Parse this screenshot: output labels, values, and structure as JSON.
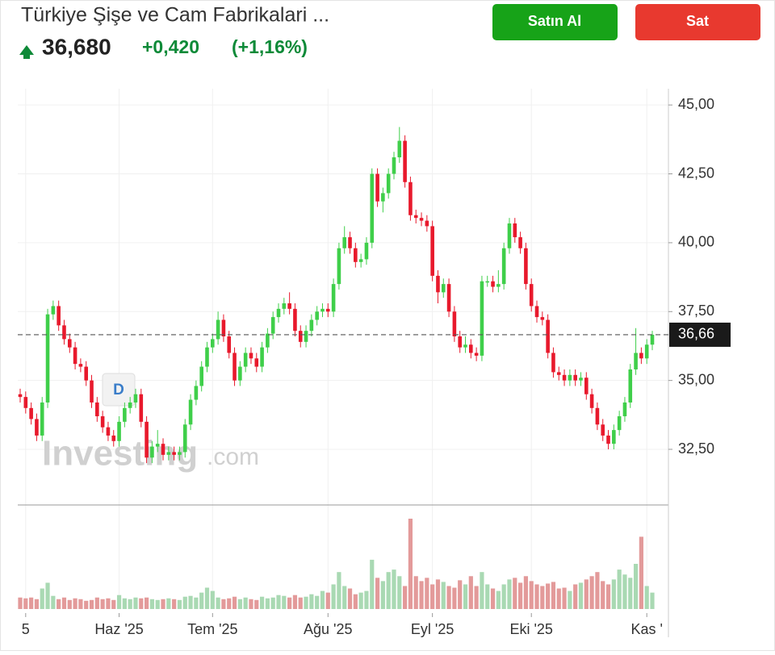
{
  "header": {
    "title": "Türkiye Şişe ve Cam Fabrikalari ...",
    "price": "36,680",
    "change": "+0,420",
    "change_pct": "(+1,16%)"
  },
  "buttons": {
    "buy": "Satın Al",
    "sell": "Sat"
  },
  "watermark": {
    "brand": "Investing",
    "suffix": ".com"
  },
  "badge": "D",
  "chart_data": {
    "type": "candlestick",
    "categories": [
      null,
      "5",
      null,
      null,
      null,
      null,
      null,
      null,
      null,
      null,
      null,
      null,
      null,
      null,
      null,
      null,
      null,
      null,
      "Haz '25",
      null,
      null,
      null,
      null,
      null,
      null,
      null,
      null,
      null,
      null,
      null,
      null,
      null,
      null,
      null,
      null,
      "Tem '25",
      null,
      null,
      null,
      null,
      null,
      null,
      null,
      null,
      null,
      null,
      null,
      null,
      null,
      null,
      null,
      null,
      null,
      null,
      null,
      null,
      "Ağu '25",
      null,
      null,
      null,
      null,
      null,
      null,
      null,
      null,
      null,
      null,
      null,
      null,
      null,
      null,
      null,
      null,
      null,
      null,
      "Eyl '25",
      null,
      null,
      null,
      null,
      null,
      null,
      null,
      null,
      null,
      null,
      null,
      null,
      null,
      null,
      null,
      null,
      null,
      "Eki '25",
      null,
      null,
      null,
      null,
      null,
      null,
      null,
      null,
      null,
      null,
      null,
      null,
      null,
      null,
      null,
      null,
      null,
      null,
      null,
      null,
      "Kas '",
      null
    ],
    "open": [
      34.5,
      34.4,
      34.0,
      33.6,
      33.0,
      34.2,
      37.4,
      37.7,
      37.0,
      36.5,
      36.2,
      35.6,
      35.5,
      35.0,
      34.2,
      33.7,
      33.3,
      33.0,
      32.8,
      33.5,
      34.0,
      34.2,
      34.5,
      33.5,
      32.2,
      32.6,
      32.7,
      32.3,
      32.4,
      32.3,
      32.4,
      33.4,
      34.3,
      34.8,
      35.5,
      36.2,
      36.5,
      37.2,
      36.6,
      36.0,
      35.0,
      35.5,
      36.0,
      35.8,
      35.5,
      36.2,
      36.7,
      37.3,
      37.6,
      37.8,
      37.6,
      36.8,
      36.4,
      36.8,
      37.2,
      37.5,
      37.6,
      37.5,
      38.5,
      39.8,
      40.2,
      39.8,
      39.3,
      39.4,
      40.0,
      42.5,
      41.5,
      41.8,
      42.5,
      43.1,
      43.7,
      42.2,
      41.0,
      40.9,
      40.8,
      40.6,
      38.8,
      38.2,
      38.5,
      37.5,
      36.6,
      36.2,
      36.3,
      36.0,
      35.9,
      38.6,
      38.6,
      38.4,
      38.5,
      39.8,
      40.7,
      40.2,
      39.8,
      38.5,
      37.7,
      37.3,
      37.2,
      36.0,
      35.3,
      35.2,
      35.0,
      35.2,
      35.0,
      35.1,
      34.5,
      34.0,
      33.4,
      33.0,
      32.7,
      33.2,
      33.7,
      34.2,
      35.4,
      36.0,
      35.8,
      36.3
    ],
    "high": [
      34.7,
      34.6,
      34.2,
      33.8,
      34.4,
      37.6,
      37.9,
      37.9,
      37.2,
      36.7,
      36.4,
      35.8,
      35.7,
      35.2,
      34.4,
      33.9,
      33.5,
      33.2,
      33.7,
      34.2,
      34.4,
      34.7,
      34.7,
      33.7,
      32.8,
      33.2,
      32.9,
      32.6,
      32.6,
      32.6,
      33.6,
      34.5,
      35.0,
      35.7,
      36.4,
      36.7,
      37.5,
      37.4,
      36.8,
      36.2,
      35.7,
      36.2,
      36.2,
      36.0,
      36.4,
      36.9,
      37.5,
      37.8,
      38.0,
      38.2,
      37.8,
      37.0,
      37.0,
      37.4,
      37.7,
      37.8,
      37.8,
      38.7,
      40.0,
      40.6,
      40.4,
      40.0,
      39.6,
      40.2,
      42.7,
      42.7,
      42.0,
      42.7,
      43.3,
      44.2,
      43.9,
      42.4,
      41.2,
      41.1,
      41.0,
      40.8,
      39.0,
      38.7,
      38.7,
      37.7,
      36.8,
      36.6,
      36.5,
      36.2,
      38.8,
      38.8,
      38.8,
      39.0,
      40.0,
      40.9,
      40.9,
      40.4,
      40.0,
      38.7,
      37.9,
      37.5,
      37.4,
      36.2,
      35.5,
      35.4,
      35.4,
      35.4,
      35.3,
      35.3,
      34.7,
      34.2,
      33.6,
      33.2,
      33.4,
      33.9,
      34.4,
      35.6,
      36.9,
      36.2,
      36.5,
      36.8
    ],
    "low": [
      34.2,
      33.8,
      33.4,
      32.8,
      32.8,
      34.0,
      37.2,
      36.8,
      36.3,
      36.0,
      35.4,
      35.3,
      34.8,
      34.0,
      33.5,
      33.1,
      32.8,
      32.6,
      32.6,
      33.3,
      33.8,
      34.0,
      33.3,
      32.0,
      32.0,
      32.4,
      32.1,
      32.1,
      32.1,
      32.1,
      32.2,
      33.2,
      34.1,
      34.6,
      35.3,
      36.0,
      36.3,
      36.4,
      35.8,
      34.8,
      34.8,
      35.3,
      35.6,
      35.3,
      35.3,
      36.0,
      36.5,
      37.1,
      37.4,
      37.4,
      36.6,
      36.2,
      36.2,
      36.6,
      37.0,
      37.3,
      37.3,
      37.3,
      38.3,
      39.6,
      39.6,
      39.1,
      39.1,
      39.2,
      39.8,
      41.3,
      41.1,
      41.6,
      42.3,
      42.9,
      42.0,
      40.8,
      40.7,
      40.6,
      40.4,
      38.6,
      37.8,
      38.0,
      37.3,
      36.4,
      36.0,
      36.0,
      35.8,
      35.7,
      35.7,
      38.4,
      38.2,
      38.2,
      38.3,
      39.6,
      40.0,
      39.6,
      38.3,
      37.5,
      37.1,
      37.0,
      35.8,
      35.1,
      35.0,
      34.8,
      34.8,
      34.8,
      34.8,
      34.3,
      33.8,
      33.2,
      32.8,
      32.5,
      32.5,
      33.0,
      33.5,
      34.0,
      35.2,
      35.6,
      35.6,
      36.1
    ],
    "close": [
      34.4,
      34.0,
      33.6,
      33.0,
      34.2,
      37.4,
      37.7,
      37.0,
      36.5,
      36.2,
      35.6,
      35.5,
      35.0,
      34.2,
      33.7,
      33.3,
      33.0,
      32.8,
      33.5,
      34.0,
      34.2,
      34.5,
      33.5,
      32.2,
      32.6,
      32.7,
      32.3,
      32.4,
      32.3,
      32.4,
      33.4,
      34.3,
      34.8,
      35.5,
      36.2,
      36.5,
      37.2,
      36.6,
      36.0,
      35.0,
      35.5,
      36.0,
      35.8,
      35.5,
      36.2,
      36.7,
      37.3,
      37.6,
      37.8,
      37.6,
      36.8,
      36.4,
      36.8,
      37.2,
      37.5,
      37.6,
      37.5,
      38.5,
      39.8,
      40.2,
      39.8,
      39.3,
      39.4,
      40.0,
      42.5,
      41.5,
      41.8,
      42.5,
      43.1,
      43.7,
      42.2,
      41.0,
      40.9,
      40.8,
      40.6,
      38.8,
      38.2,
      38.5,
      37.5,
      36.6,
      36.2,
      36.3,
      36.0,
      35.9,
      38.6,
      38.6,
      38.4,
      38.5,
      39.8,
      40.7,
      40.2,
      39.8,
      38.5,
      37.7,
      37.3,
      37.2,
      36.0,
      35.3,
      35.2,
      35.0,
      35.2,
      35.0,
      35.1,
      34.5,
      34.0,
      33.4,
      33.0,
      32.7,
      33.2,
      33.7,
      34.2,
      35.4,
      36.0,
      35.8,
      36.3,
      36.66
    ],
    "volume": [
      14,
      13,
      14,
      12,
      25,
      32,
      16,
      12,
      14,
      11,
      13,
      12,
      10,
      11,
      14,
      12,
      13,
      11,
      17,
      13,
      12,
      14,
      13,
      14,
      12,
      11,
      12,
      13,
      12,
      11,
      15,
      16,
      14,
      20,
      26,
      22,
      14,
      12,
      13,
      15,
      12,
      14,
      12,
      11,
      15,
      13,
      14,
      17,
      16,
      14,
      17,
      14,
      15,
      18,
      16,
      22,
      20,
      30,
      45,
      28,
      25,
      18,
      20,
      22,
      60,
      38,
      34,
      45,
      48,
      40,
      28,
      110,
      40,
      34,
      38,
      30,
      36,
      33,
      28,
      26,
      35,
      30,
      40,
      28,
      45,
      30,
      25,
      22,
      30,
      36,
      38,
      32,
      40,
      34,
      30,
      28,
      31,
      33,
      25,
      26,
      22,
      30,
      32,
      36,
      40,
      45,
      34,
      30,
      36,
      48,
      42,
      38,
      55,
      88,
      28,
      20
    ],
    "up_color": "#3fcf4a",
    "down_color": "#e8192c",
    "up_volume_color": "#a9d9b3",
    "down_volume_color": "#e39a9a",
    "ylim": [
      30.48,
      45.59
    ],
    "yticks": [
      {
        "value": 32.5,
        "label": "32,50"
      },
      {
        "value": 35,
        "label": "35,00"
      },
      {
        "value": 37.5,
        "label": "37,50"
      },
      {
        "value": 40,
        "label": "40,00"
      },
      {
        "value": 42.5,
        "label": "42,50"
      },
      {
        "value": 45,
        "label": "45,00"
      }
    ],
    "last_price": {
      "value": 36.66,
      "label": "36,66"
    },
    "grid": true
  }
}
